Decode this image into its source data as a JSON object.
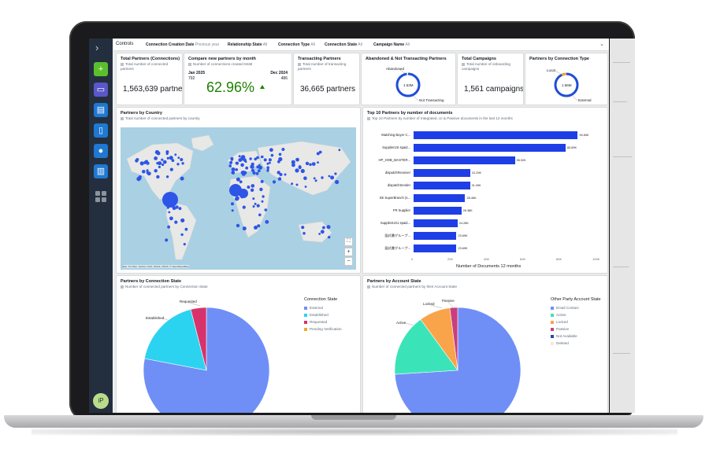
{
  "controls": {
    "title": "Controls",
    "filters": [
      {
        "label": "Connection Creation Date",
        "value": "Previous year"
      },
      {
        "label": "Relationship State",
        "value": "All"
      },
      {
        "label": "Connection Type",
        "value": "All"
      },
      {
        "label": "Connection State",
        "value": "All"
      },
      {
        "label": "Campaign Name",
        "value": "All"
      }
    ]
  },
  "kpi": {
    "total_partners": {
      "title": "Total Partners (Connections)",
      "subtitle": "Total number of connected partners",
      "value": "1,563,639 partners"
    },
    "compare": {
      "title": "Compare new partners by month",
      "subtitle": "Number of connections created MoM",
      "start_label": "Jan 2025",
      "start_value": "792",
      "end_label": "Dec 2024",
      "end_value": "486",
      "percent": "62.96%",
      "trend": "up"
    },
    "transacting": {
      "title": "Transacting Partners",
      "subtitle": "Total number of transacting partners",
      "value": "36,665 partners"
    },
    "abandoned": {
      "title": "Abandoned & Not Transacting Partners",
      "label_top": "Abandoned",
      "label_bottom": "Not Transacting",
      "center": "1.53M",
      "fraction": 0.98
    },
    "campaigns": {
      "title": "Total Campaigns",
      "subtitle": "Total number of onboarding campaigns",
      "value": "1,561 campaigns"
    },
    "conn_type": {
      "title": "Partners by Connection Type",
      "label_top": "Local",
      "label_bottom": "External",
      "center": "1.56M",
      "fraction": 0.97
    }
  },
  "map": {
    "title": "Partners by Country",
    "subtitle": "Total number of connected partners by country",
    "zoom_in": "+",
    "zoom_out": "−",
    "attribution": "Esri, TomTom, Garmin, FAO, NOAA, USGS, © OpenStreetMap"
  },
  "top10": {
    "title": "Top 10 Partners by number of documents",
    "subtitle": "Top 10 Partners by number of Integrated, UI & Passive documents in the last 12 months",
    "xlabel": "Number of Documents 12 months",
    "xticks": [
      "0",
      "20K",
      "40K",
      "60K",
      "80K",
      "100K"
    ],
    "xmax": 100000
  },
  "conn_state": {
    "title": "Partners by Connection State",
    "subtitle": "Number of connected partners by Connection State",
    "legend_title": "Connection State",
    "labels": {
      "requested": "Requested",
      "established": "Established"
    }
  },
  "acct_state": {
    "title": "Partners by Account State",
    "subtitle": "Number of connected partners by their Account State",
    "legend_title": "Other Party Account State",
    "labels": {
      "locked": "Locked",
      "passive": "Passive",
      "active": "Active"
    }
  },
  "sidebar": {
    "avatar": "iP"
  },
  "chart_data": [
    {
      "type": "bar",
      "title": "Top 10 Partners by number of documents",
      "xlabel": "Number of Documents 12 months",
      "xlim": [
        0,
        100000
      ],
      "categories": [
        "Matching Buyer C...",
        "SupplierUS spaid...",
        "HP_HOB_MASTER...",
        "dispatchReceiver",
        "dispatchSender",
        "SE SuperBranch (s...",
        "FR Supplier",
        "SupplierUS1 spaid...",
        "図式書グループ...",
        "図式書グループ..."
      ],
      "values": [
        90650,
        83890,
        55920,
        31290,
        31090,
        28460,
        26380,
        24280,
        23690,
        23690
      ],
      "value_labels": [
        "90.65K",
        "83.89K",
        "55.92K",
        "31.29K",
        "31.09K",
        "28.46K",
        "26.38K",
        "24.28K",
        "23.69K",
        "23.69K"
      ]
    },
    {
      "type": "pie",
      "title": "Partners by Connection State",
      "categories": [
        "External",
        "Established",
        "Requested",
        "Pending Verification"
      ],
      "values": [
        0.78,
        0.18,
        0.04,
        0.0
      ],
      "colors": [
        "#6f8ff7",
        "#2bd3f0",
        "#d6336c",
        "#f5a623"
      ]
    },
    {
      "type": "pie",
      "title": "Partners by Account State",
      "categories": [
        "Email Contact",
        "Active",
        "Locked",
        "Passive",
        "Not Available",
        "Deleted"
      ],
      "values": [
        0.74,
        0.16,
        0.08,
        0.02,
        0.0,
        0.0
      ],
      "colors": [
        "#6f8ff7",
        "#3be3b8",
        "#f9a34a",
        "#c93f7e",
        "#2a4aa8",
        "#f2ead6"
      ]
    }
  ]
}
